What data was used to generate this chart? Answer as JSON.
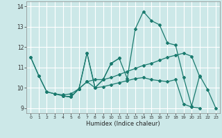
{
  "title": "",
  "xlabel": "Humidex (Indice chaleur)",
  "ylabel": "",
  "bg_color": "#cce8e8",
  "grid_color": "#ffffff",
  "line_color": "#1a7a6e",
  "xlim": [
    -0.5,
    23.5
  ],
  "ylim": [
    8.75,
    14.25
  ],
  "xticks": [
    0,
    1,
    2,
    3,
    4,
    5,
    6,
    7,
    8,
    9,
    10,
    11,
    12,
    13,
    14,
    15,
    16,
    17,
    18,
    19,
    20,
    21,
    22,
    23
  ],
  "yticks": [
    9,
    10,
    11,
    12,
    13,
    14
  ],
  "series": [
    [
      0,
      11.5
    ],
    [
      1,
      10.6
    ],
    [
      2,
      9.8
    ],
    [
      3,
      9.7
    ],
    [
      4,
      9.6
    ],
    [
      5,
      9.55
    ],
    [
      6,
      9.95
    ],
    [
      7,
      11.7
    ],
    [
      8,
      10.0
    ],
    [
      9,
      10.4
    ],
    [
      10,
      11.2
    ],
    [
      11,
      11.45
    ],
    [
      12,
      10.45
    ],
    [
      13,
      12.9
    ],
    [
      14,
      13.75
    ],
    [
      15,
      13.3
    ],
    [
      16,
      13.1
    ],
    [
      17,
      12.2
    ],
    [
      18,
      12.1
    ],
    [
      19,
      10.5
    ],
    [
      20,
      9.1
    ],
    [
      21,
      10.6
    ],
    [
      22,
      9.9
    ],
    [
      23,
      9.0
    ]
  ],
  "series2": [
    [
      0,
      11.5
    ],
    [
      1,
      10.6
    ],
    [
      2,
      9.8
    ],
    [
      3,
      9.7
    ],
    [
      4,
      9.65
    ],
    [
      5,
      9.7
    ],
    [
      6,
      9.95
    ],
    [
      7,
      10.3
    ],
    [
      8,
      10.4
    ],
    [
      9,
      10.4
    ],
    [
      10,
      10.5
    ],
    [
      11,
      10.65
    ],
    [
      12,
      10.8
    ],
    [
      13,
      10.95
    ],
    [
      14,
      11.1
    ],
    [
      15,
      11.2
    ],
    [
      16,
      11.35
    ],
    [
      17,
      11.5
    ],
    [
      18,
      11.6
    ],
    [
      19,
      11.7
    ],
    [
      20,
      11.55
    ],
    [
      21,
      10.55
    ]
  ],
  "series3": [
    [
      4,
      9.6
    ],
    [
      5,
      9.55
    ],
    [
      6,
      9.95
    ],
    [
      7,
      10.3
    ],
    [
      8,
      10.0
    ],
    [
      9,
      10.05
    ],
    [
      10,
      10.15
    ],
    [
      11,
      10.25
    ],
    [
      12,
      10.35
    ],
    [
      13,
      10.45
    ],
    [
      14,
      10.5
    ],
    [
      15,
      10.4
    ],
    [
      16,
      10.35
    ],
    [
      17,
      10.3
    ],
    [
      18,
      10.4
    ],
    [
      19,
      9.2
    ],
    [
      20,
      9.05
    ],
    [
      21,
      9.0
    ]
  ],
  "series4": [
    [
      4,
      9.6
    ],
    [
      5,
      9.55
    ],
    [
      6,
      9.95
    ],
    [
      7,
      11.7
    ],
    [
      8,
      10.0
    ],
    [
      9,
      10.4
    ],
    [
      10,
      11.2
    ],
    [
      11,
      11.45
    ]
  ]
}
